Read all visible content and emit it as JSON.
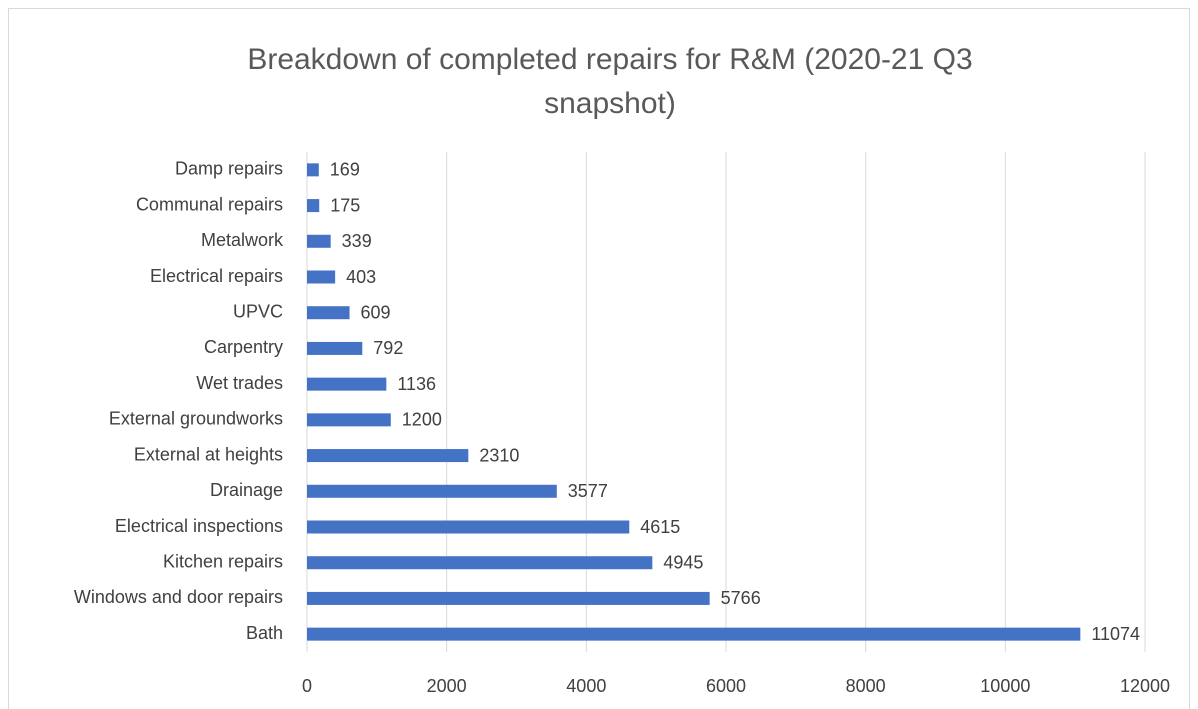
{
  "chart_data": {
    "type": "bar",
    "orientation": "horizontal",
    "title": "Breakdown of completed repairs for R&M (2020-21 Q3 snapshot)",
    "categories": [
      "Damp repairs",
      "Communal repairs",
      "Metalwork",
      "Electrical repairs",
      "UPVC",
      "Carpentry",
      "Wet trades",
      "External groundworks",
      "External at heights",
      "Drainage",
      "Electrical inspections",
      "Kitchen repairs",
      "Windows and door repairs",
      "Bath"
    ],
    "values": [
      169,
      175,
      339,
      403,
      609,
      792,
      1136,
      1200,
      2310,
      3577,
      4615,
      4945,
      5766,
      11074
    ],
    "color": "#4472c4",
    "xlim": [
      0,
      12000
    ],
    "xticks": [
      0,
      2000,
      4000,
      6000,
      8000,
      10000,
      12000
    ],
    "grid": true
  }
}
